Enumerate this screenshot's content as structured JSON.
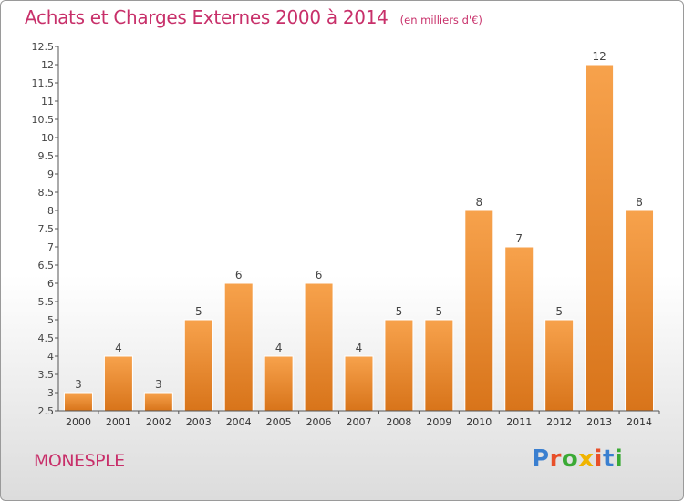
{
  "header": {
    "title": "Achats et Charges Externes 2000 à 2014",
    "unit_note": "(en milliers d'€)"
  },
  "commune": "MONESPLE",
  "logo": {
    "text": "Proxiti",
    "letter_colors": [
      "#3a7fd0",
      "#e8502a",
      "#3aaa35",
      "#f0b400",
      "#e8502a",
      "#3a7fd0",
      "#3aaa35"
    ]
  },
  "colors": {
    "title": "#c8306a",
    "bar_light": "#f7a24c",
    "bar_dark": "#d8741a"
  },
  "chart_data": {
    "type": "bar",
    "title": "Achats et Charges Externes 2000 à 2014",
    "categories": [
      "2000",
      "2001",
      "2002",
      "2003",
      "2004",
      "2005",
      "2006",
      "2007",
      "2008",
      "2009",
      "2010",
      "2011",
      "2012",
      "2013",
      "2014"
    ],
    "values": [
      3,
      4,
      3,
      5,
      6,
      4,
      6,
      4,
      5,
      5,
      8,
      7,
      5,
      12,
      8
    ],
    "ylim": [
      2.5,
      12.5
    ],
    "yticks": [
      "2.5",
      "3",
      "3.5",
      "4",
      "4.5",
      "5",
      "5.5",
      "6",
      "6.5",
      "7",
      "7.5",
      "8",
      "8.5",
      "9",
      "9.5",
      "10",
      "10.5",
      "11",
      "11.5",
      "12",
      "12.5"
    ],
    "grid": false,
    "data_labels": true
  }
}
